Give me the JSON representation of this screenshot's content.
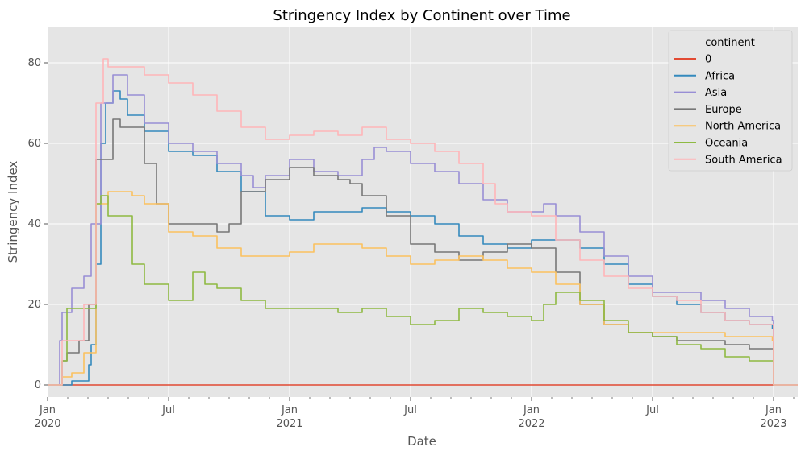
{
  "chart_data": {
    "type": "line",
    "title": "Stringency Index by Continent over Time",
    "xlabel": "Date",
    "ylabel": "Stringency Index",
    "xlim": [
      2020.0,
      2023.1
    ],
    "ylim": [
      -3,
      89
    ],
    "grid": true,
    "legend": {
      "title": "continent",
      "position": "top-right"
    },
    "y_ticks": [
      0,
      20,
      40,
      60,
      80
    ],
    "x_major_ticks": [
      {
        "value": 2020.0,
        "line1": "Jan",
        "line2": "2020"
      },
      {
        "value": 2020.5,
        "line1": "Jul",
        "line2": ""
      },
      {
        "value": 2021.0,
        "line1": "Jan",
        "line2": "2021"
      },
      {
        "value": 2021.5,
        "line1": "Jul",
        "line2": ""
      },
      {
        "value": 2022.0,
        "line1": "Jan",
        "line2": "2022"
      },
      {
        "value": 2022.5,
        "line1": "Jul",
        "line2": ""
      },
      {
        "value": 2023.0,
        "line1": "Jan",
        "line2": "2023"
      }
    ],
    "series": [
      {
        "name": "0",
        "color": "#E24A33",
        "points": [
          [
            2020.0,
            0
          ],
          [
            2023.1,
            0
          ]
        ]
      },
      {
        "name": "Africa",
        "color": "#348ABD",
        "points": [
          [
            2020.0,
            0
          ],
          [
            2020.06,
            0
          ],
          [
            2020.1,
            1
          ],
          [
            2020.15,
            1
          ],
          [
            2020.17,
            5
          ],
          [
            2020.18,
            10
          ],
          [
            2020.2,
            30
          ],
          [
            2020.22,
            60
          ],
          [
            2020.24,
            70
          ],
          [
            2020.27,
            73
          ],
          [
            2020.3,
            71
          ],
          [
            2020.33,
            67
          ],
          [
            2020.4,
            63
          ],
          [
            2020.5,
            58
          ],
          [
            2020.6,
            57
          ],
          [
            2020.7,
            53
          ],
          [
            2020.8,
            48
          ],
          [
            2020.9,
            42
          ],
          [
            2021.0,
            41
          ],
          [
            2021.1,
            43
          ],
          [
            2021.2,
            43
          ],
          [
            2021.3,
            44
          ],
          [
            2021.4,
            43
          ],
          [
            2021.5,
            42
          ],
          [
            2021.6,
            40
          ],
          [
            2021.7,
            37
          ],
          [
            2021.8,
            35
          ],
          [
            2021.9,
            34
          ],
          [
            2022.0,
            36
          ],
          [
            2022.1,
            36
          ],
          [
            2022.2,
            34
          ],
          [
            2022.3,
            30
          ],
          [
            2022.4,
            25
          ],
          [
            2022.5,
            22
          ],
          [
            2022.6,
            20
          ],
          [
            2022.7,
            18
          ],
          [
            2022.8,
            16
          ],
          [
            2022.9,
            15
          ],
          [
            2022.995,
            14
          ],
          [
            2023.0,
            0
          ],
          [
            2023.1,
            0
          ]
        ]
      },
      {
        "name": "Asia",
        "color": "#988ED5",
        "points": [
          [
            2020.0,
            0
          ],
          [
            2020.04,
            0
          ],
          [
            2020.05,
            11
          ],
          [
            2020.06,
            18
          ],
          [
            2020.1,
            24
          ],
          [
            2020.15,
            27
          ],
          [
            2020.18,
            40
          ],
          [
            2020.22,
            70
          ],
          [
            2020.27,
            77
          ],
          [
            2020.33,
            72
          ],
          [
            2020.4,
            65
          ],
          [
            2020.5,
            60
          ],
          [
            2020.6,
            58
          ],
          [
            2020.7,
            55
          ],
          [
            2020.8,
            52
          ],
          [
            2020.85,
            49
          ],
          [
            2020.9,
            52
          ],
          [
            2021.0,
            56
          ],
          [
            2021.1,
            53
          ],
          [
            2021.2,
            52
          ],
          [
            2021.3,
            56
          ],
          [
            2021.35,
            59
          ],
          [
            2021.4,
            58
          ],
          [
            2021.5,
            55
          ],
          [
            2021.6,
            53
          ],
          [
            2021.7,
            50
          ],
          [
            2021.8,
            46
          ],
          [
            2021.9,
            43
          ],
          [
            2022.0,
            43
          ],
          [
            2022.05,
            45
          ],
          [
            2022.1,
            42
          ],
          [
            2022.2,
            38
          ],
          [
            2022.3,
            32
          ],
          [
            2022.4,
            27
          ],
          [
            2022.5,
            23
          ],
          [
            2022.6,
            23
          ],
          [
            2022.7,
            21
          ],
          [
            2022.8,
            19
          ],
          [
            2022.9,
            17
          ],
          [
            2022.995,
            16
          ],
          [
            2023.0,
            0
          ],
          [
            2023.1,
            0
          ]
        ]
      },
      {
        "name": "Europe",
        "color": "#777777",
        "points": [
          [
            2020.0,
            0
          ],
          [
            2020.05,
            0
          ],
          [
            2020.06,
            6
          ],
          [
            2020.08,
            8
          ],
          [
            2020.13,
            11
          ],
          [
            2020.17,
            20
          ],
          [
            2020.2,
            56
          ],
          [
            2020.27,
            66
          ],
          [
            2020.3,
            64
          ],
          [
            2020.4,
            55
          ],
          [
            2020.45,
            45
          ],
          [
            2020.5,
            40
          ],
          [
            2020.6,
            40
          ],
          [
            2020.7,
            38
          ],
          [
            2020.75,
            40
          ],
          [
            2020.8,
            48
          ],
          [
            2020.9,
            51
          ],
          [
            2021.0,
            54
          ],
          [
            2021.1,
            52
          ],
          [
            2021.2,
            51
          ],
          [
            2021.25,
            50
          ],
          [
            2021.3,
            47
          ],
          [
            2021.4,
            42
          ],
          [
            2021.5,
            35
          ],
          [
            2021.6,
            33
          ],
          [
            2021.7,
            31
          ],
          [
            2021.8,
            33
          ],
          [
            2021.9,
            35
          ],
          [
            2022.0,
            34
          ],
          [
            2022.1,
            28
          ],
          [
            2022.2,
            20
          ],
          [
            2022.3,
            15
          ],
          [
            2022.4,
            13
          ],
          [
            2022.5,
            12
          ],
          [
            2022.6,
            11
          ],
          [
            2022.7,
            11
          ],
          [
            2022.8,
            10
          ],
          [
            2022.9,
            9
          ],
          [
            2022.995,
            9
          ],
          [
            2023.0,
            0
          ],
          [
            2023.1,
            0
          ]
        ]
      },
      {
        "name": "North America",
        "color": "#FBC15E",
        "points": [
          [
            2020.0,
            0
          ],
          [
            2020.05,
            0
          ],
          [
            2020.06,
            2
          ],
          [
            2020.1,
            3
          ],
          [
            2020.15,
            8
          ],
          [
            2020.2,
            45
          ],
          [
            2020.25,
            48
          ],
          [
            2020.3,
            48
          ],
          [
            2020.35,
            47
          ],
          [
            2020.4,
            45
          ],
          [
            2020.5,
            38
          ],
          [
            2020.6,
            37
          ],
          [
            2020.7,
            34
          ],
          [
            2020.8,
            32
          ],
          [
            2020.9,
            32
          ],
          [
            2021.0,
            33
          ],
          [
            2021.1,
            35
          ],
          [
            2021.2,
            35
          ],
          [
            2021.3,
            34
          ],
          [
            2021.4,
            32
          ],
          [
            2021.5,
            30
          ],
          [
            2021.6,
            31
          ],
          [
            2021.7,
            32
          ],
          [
            2021.8,
            31
          ],
          [
            2021.9,
            29
          ],
          [
            2022.0,
            28
          ],
          [
            2022.1,
            25
          ],
          [
            2022.2,
            20
          ],
          [
            2022.3,
            15
          ],
          [
            2022.4,
            13
          ],
          [
            2022.5,
            13
          ],
          [
            2022.6,
            13
          ],
          [
            2022.7,
            13
          ],
          [
            2022.8,
            12
          ],
          [
            2022.9,
            12
          ],
          [
            2022.995,
            11
          ],
          [
            2023.0,
            0
          ],
          [
            2023.1,
            0
          ]
        ]
      },
      {
        "name": "Oceania",
        "color": "#8EBA42",
        "points": [
          [
            2020.0,
            0
          ],
          [
            2020.05,
            0
          ],
          [
            2020.06,
            6
          ],
          [
            2020.08,
            19
          ],
          [
            2020.15,
            19
          ],
          [
            2020.2,
            45
          ],
          [
            2020.22,
            47
          ],
          [
            2020.25,
            42
          ],
          [
            2020.3,
            42
          ],
          [
            2020.35,
            30
          ],
          [
            2020.4,
            25
          ],
          [
            2020.5,
            21
          ],
          [
            2020.55,
            21
          ],
          [
            2020.6,
            28
          ],
          [
            2020.65,
            25
          ],
          [
            2020.7,
            24
          ],
          [
            2020.8,
            21
          ],
          [
            2020.9,
            19
          ],
          [
            2021.0,
            19
          ],
          [
            2021.1,
            19
          ],
          [
            2021.2,
            18
          ],
          [
            2021.3,
            19
          ],
          [
            2021.4,
            17
          ],
          [
            2021.5,
            15
          ],
          [
            2021.6,
            16
          ],
          [
            2021.7,
            19
          ],
          [
            2021.8,
            18
          ],
          [
            2021.9,
            17
          ],
          [
            2022.0,
            16
          ],
          [
            2022.05,
            20
          ],
          [
            2022.1,
            23
          ],
          [
            2022.2,
            21
          ],
          [
            2022.3,
            16
          ],
          [
            2022.4,
            13
          ],
          [
            2022.5,
            12
          ],
          [
            2022.6,
            10
          ],
          [
            2022.7,
            9
          ],
          [
            2022.8,
            7
          ],
          [
            2022.9,
            6
          ],
          [
            2022.995,
            6
          ],
          [
            2023.0,
            0
          ],
          [
            2023.1,
            0
          ]
        ]
      },
      {
        "name": "South America",
        "color": "#FFB5B8",
        "points": [
          [
            2020.0,
            0
          ],
          [
            2020.05,
            0
          ],
          [
            2020.06,
            11
          ],
          [
            2020.12,
            11
          ],
          [
            2020.15,
            20
          ],
          [
            2020.2,
            70
          ],
          [
            2020.23,
            81
          ],
          [
            2020.25,
            79
          ],
          [
            2020.3,
            79
          ],
          [
            2020.4,
            77
          ],
          [
            2020.5,
            75
          ],
          [
            2020.6,
            72
          ],
          [
            2020.7,
            68
          ],
          [
            2020.8,
            64
          ],
          [
            2020.9,
            61
          ],
          [
            2021.0,
            62
          ],
          [
            2021.1,
            63
          ],
          [
            2021.2,
            62
          ],
          [
            2021.3,
            64
          ],
          [
            2021.4,
            61
          ],
          [
            2021.5,
            60
          ],
          [
            2021.6,
            58
          ],
          [
            2021.7,
            55
          ],
          [
            2021.8,
            50
          ],
          [
            2021.85,
            45
          ],
          [
            2021.9,
            43
          ],
          [
            2022.0,
            42
          ],
          [
            2022.1,
            36
          ],
          [
            2022.2,
            31
          ],
          [
            2022.3,
            27
          ],
          [
            2022.4,
            24
          ],
          [
            2022.5,
            22
          ],
          [
            2022.6,
            21
          ],
          [
            2022.7,
            18
          ],
          [
            2022.8,
            16
          ],
          [
            2022.9,
            15
          ],
          [
            2022.995,
            15
          ],
          [
            2023.0,
            0
          ],
          [
            2023.1,
            0
          ]
        ]
      }
    ]
  }
}
